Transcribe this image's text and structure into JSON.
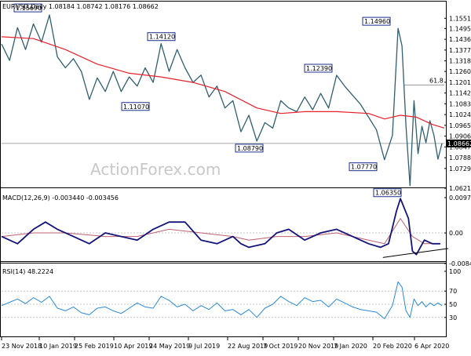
{
  "header": {
    "price": "EURUSD,Daily  1.08184 1.08742 1.08176 1.08662",
    "macd": "MACD(12,26,9) -0.003440 -0.003456",
    "rsi": "RSI(14) 48.2224"
  },
  "watermark": "ActionForex.com",
  "colors": {
    "price_line": "#2f5f70",
    "ma": "#e8202a",
    "macd_line": "#14147a",
    "signal_line": "#c06070",
    "rsi": "#2a8ad8",
    "axis": "#000000",
    "grid": "#c8c8c8",
    "annotation_border": "#1c2e8c",
    "trendline": "#000000"
  },
  "chart_data": [
    {
      "type": "line",
      "name": "price",
      "x": [
        "23 Nov 2018",
        "10 Jan 2019",
        "25 Feb 2019",
        "10 Apr 2019",
        "24 May 2019",
        "9 Jul 2019",
        "22 Aug 2019",
        "7 Oct 2019",
        "20 Nov 2019",
        "7 Jan 2020",
        "20 Feb 2020",
        "6 Apr 2020"
      ],
      "ylim": [
        1.0621,
        1.1591
      ],
      "y_ticks": [
        "1.15510",
        "1.14950",
        "1.14360",
        "1.13770",
        "1.13180",
        "1.12600",
        "1.12010",
        "1.11420",
        "1.10830",
        "1.10240",
        "1.09650",
        "1.09060",
        "1.08470",
        "1.07880",
        "1.07290",
        "1.06210"
      ],
      "last_price": "1.08662",
      "fib_label": "61.8",
      "fib_level": 1.1186,
      "series": [],
      "annotations": [
        {
          "text": "1.15690",
          "value": 1.1569
        },
        {
          "text": "1.11070",
          "value": 1.1107
        },
        {
          "text": "1.14120",
          "value": 1.1412
        },
        {
          "text": "1.08790",
          "value": 1.0879
        },
        {
          "text": "1.12390",
          "value": 1.1239
        },
        {
          "text": "1.07770",
          "value": 1.0777
        },
        {
          "text": "1.14960",
          "value": 1.1496
        },
        {
          "text": "1.06350",
          "value": 1.0635
        }
      ],
      "close_path": [
        [
          0,
          1.141
        ],
        [
          10,
          1.132
        ],
        [
          20,
          1.15
        ],
        [
          30,
          1.138
        ],
        [
          40,
          1.152
        ],
        [
          50,
          1.142
        ],
        [
          60,
          1.1569
        ],
        [
          70,
          1.134
        ],
        [
          80,
          1.128
        ],
        [
          90,
          1.133
        ],
        [
          100,
          1.126
        ],
        [
          110,
          1.1107
        ],
        [
          120,
          1.1225
        ],
        [
          130,
          1.115
        ],
        [
          140,
          1.126
        ],
        [
          150,
          1.115
        ],
        [
          160,
          1.123
        ],
        [
          170,
          1.118
        ],
        [
          180,
          1.128
        ],
        [
          190,
          1.12
        ],
        [
          200,
          1.1412
        ],
        [
          210,
          1.126
        ],
        [
          220,
          1.138
        ],
        [
          230,
          1.128
        ],
        [
          240,
          1.12
        ],
        [
          250,
          1.124
        ],
        [
          260,
          1.112
        ],
        [
          270,
          1.118
        ],
        [
          280,
          1.106
        ],
        [
          290,
          1.11
        ],
        [
          300,
          1.093
        ],
        [
          310,
          1.102
        ],
        [
          320,
          1.0879
        ],
        [
          330,
          1.098
        ],
        [
          340,
          1.095
        ],
        [
          350,
          1.11
        ],
        [
          360,
          1.106
        ],
        [
          370,
          1.104
        ],
        [
          380,
          1.112
        ],
        [
          390,
          1.105
        ],
        [
          400,
          1.114
        ],
        [
          410,
          1.106
        ],
        [
          420,
          1.1239
        ],
        [
          430,
          1.118
        ],
        [
          440,
          1.113
        ],
        [
          450,
          1.108
        ],
        [
          460,
          1.101
        ],
        [
          470,
          1.094
        ],
        [
          480,
          1.0777
        ],
        [
          490,
          1.091
        ],
        [
          497,
          1.1496
        ],
        [
          502,
          1.14
        ],
        [
          507,
          1.096
        ],
        [
          512,
          1.0635
        ],
        [
          517,
          1.11
        ],
        [
          522,
          1.081
        ],
        [
          527,
          1.096
        ],
        [
          532,
          1.087
        ],
        [
          537,
          1.099
        ],
        [
          542,
          1.091
        ],
        [
          547,
          1.078
        ],
        [
          552,
          1.0866
        ]
      ],
      "ma_path": [
        [
          0,
          1.145
        ],
        [
          40,
          1.144
        ],
        [
          80,
          1.138
        ],
        [
          120,
          1.13
        ],
        [
          160,
          1.125
        ],
        [
          200,
          1.123
        ],
        [
          240,
          1.12
        ],
        [
          280,
          1.115
        ],
        [
          320,
          1.106
        ],
        [
          350,
          1.103
        ],
        [
          380,
          1.104
        ],
        [
          420,
          1.104
        ],
        [
          460,
          1.103
        ],
        [
          480,
          1.1
        ],
        [
          500,
          1.102
        ],
        [
          520,
          1.101
        ],
        [
          540,
          1.097
        ],
        [
          555,
          1.095
        ]
      ]
    },
    {
      "type": "line",
      "name": "MACD",
      "ylim": [
        -0.008464,
        0.00978
      ],
      "y_ticks": [
        "0.00978",
        "0.00",
        "-0.008464"
      ],
      "macd_path": [
        [
          0,
          -0.001
        ],
        [
          20,
          -0.003
        ],
        [
          40,
          0.001
        ],
        [
          55,
          0.003
        ],
        [
          70,
          0.001
        ],
        [
          90,
          -0.001
        ],
        [
          110,
          -0.003
        ],
        [
          130,
          0.0
        ],
        [
          150,
          -0.001
        ],
        [
          170,
          -0.002
        ],
        [
          190,
          0.001
        ],
        [
          210,
          0.003
        ],
        [
          230,
          0.003
        ],
        [
          250,
          -0.002
        ],
        [
          270,
          -0.003
        ],
        [
          290,
          -0.001
        ],
        [
          300,
          -0.003
        ],
        [
          310,
          -0.004
        ],
        [
          330,
          -0.003
        ],
        [
          345,
          0.0
        ],
        [
          360,
          0.001
        ],
        [
          380,
          -0.002
        ],
        [
          400,
          0.0
        ],
        [
          420,
          0.001
        ],
        [
          440,
          -0.001
        ],
        [
          460,
          -0.003
        ],
        [
          475,
          -0.004
        ],
        [
          485,
          -0.003
        ],
        [
          495,
          0.006
        ],
        [
          500,
          0.0095
        ],
        [
          510,
          0.004
        ],
        [
          515,
          -0.005
        ],
        [
          520,
          -0.006
        ],
        [
          530,
          -0.002
        ],
        [
          540,
          -0.003
        ],
        [
          550,
          -0.003
        ]
      ],
      "signal_path": [
        [
          0,
          -0.001
        ],
        [
          40,
          0.0
        ],
        [
          80,
          0.0
        ],
        [
          130,
          -0.001
        ],
        [
          170,
          -0.001
        ],
        [
          210,
          0.001
        ],
        [
          250,
          0.0
        ],
        [
          290,
          -0.001
        ],
        [
          310,
          -0.002
        ],
        [
          345,
          -0.001
        ],
        [
          380,
          -0.001
        ],
        [
          420,
          0.0
        ],
        [
          460,
          -0.002
        ],
        [
          480,
          -0.003
        ],
        [
          500,
          0.004
        ],
        [
          515,
          -0.001
        ],
        [
          530,
          -0.003
        ],
        [
          550,
          -0.003
        ]
      ],
      "trendline": [
        [
          478,
          -0.0068
        ],
        [
          560,
          -0.0043
        ]
      ]
    },
    {
      "type": "line",
      "name": "RSI",
      "ylim": [
        0,
        100
      ],
      "y_ticks": [
        "100",
        "70",
        "50",
        "30"
      ],
      "levels": [
        70,
        50,
        30
      ],
      "rsi_path": [
        [
          0,
          48
        ],
        [
          10,
          53
        ],
        [
          20,
          58
        ],
        [
          30,
          51
        ],
        [
          40,
          60
        ],
        [
          50,
          53
        ],
        [
          60,
          62
        ],
        [
          70,
          44
        ],
        [
          80,
          40
        ],
        [
          90,
          46
        ],
        [
          100,
          37
        ],
        [
          110,
          34
        ],
        [
          120,
          44
        ],
        [
          130,
          46
        ],
        [
          140,
          40
        ],
        [
          150,
          36
        ],
        [
          160,
          44
        ],
        [
          170,
          52
        ],
        [
          180,
          46
        ],
        [
          190,
          44
        ],
        [
          200,
          62
        ],
        [
          210,
          56
        ],
        [
          220,
          46
        ],
        [
          230,
          50
        ],
        [
          240,
          40
        ],
        [
          250,
          48
        ],
        [
          260,
          42
        ],
        [
          270,
          52
        ],
        [
          280,
          40
        ],
        [
          290,
          42
        ],
        [
          300,
          34
        ],
        [
          310,
          42
        ],
        [
          320,
          30
        ],
        [
          330,
          44
        ],
        [
          340,
          50
        ],
        [
          350,
          62
        ],
        [
          360,
          54
        ],
        [
          370,
          48
        ],
        [
          380,
          60
        ],
        [
          390,
          54
        ],
        [
          400,
          56
        ],
        [
          410,
          46
        ],
        [
          420,
          58
        ],
        [
          430,
          52
        ],
        [
          440,
          46
        ],
        [
          450,
          42
        ],
        [
          460,
          40
        ],
        [
          470,
          38
        ],
        [
          480,
          28
        ],
        [
          490,
          48
        ],
        [
          497,
          84
        ],
        [
          502,
          76
        ],
        [
          507,
          40
        ],
        [
          512,
          30
        ],
        [
          517,
          58
        ],
        [
          522,
          48
        ],
        [
          527,
          54
        ],
        [
          532,
          46
        ],
        [
          537,
          52
        ],
        [
          542,
          48
        ],
        [
          547,
          52
        ],
        [
          552,
          48
        ]
      ]
    }
  ]
}
